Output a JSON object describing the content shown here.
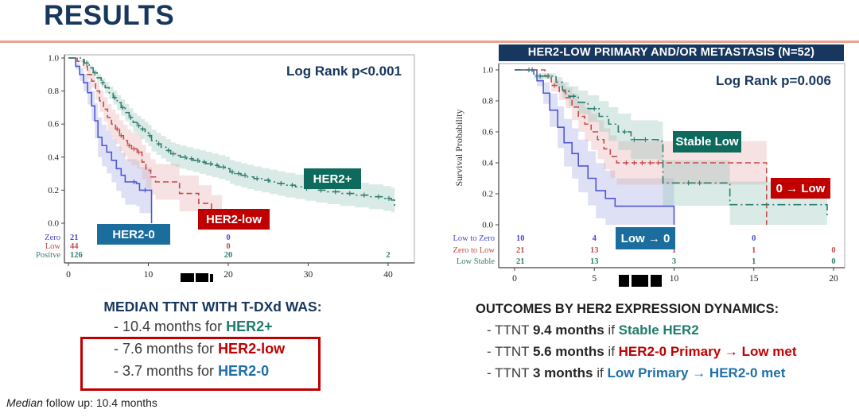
{
  "slide": {
    "title": "RESULTS"
  },
  "accents": {
    "navy": "#17375E",
    "rule": "#EBA48E",
    "teal": "#0E6A5C",
    "red": "#C00000",
    "blue": "#1B6D9E",
    "dark": "#1F1F1F"
  },
  "left_summary": {
    "heading": "MEDIAN TTNT WITH T-DXd WAS:",
    "lines": [
      {
        "prefix": "- 10.4 months for ",
        "highlight": "HER2+",
        "color": "#1E7C6B"
      },
      {
        "prefix": "- 7.6 months for ",
        "highlight": "HER2-low",
        "color": "#C00000"
      },
      {
        "prefix": "- 3.7 months for ",
        "highlight": "HER2-0",
        "color": "#1F6FA8"
      }
    ]
  },
  "right_summary": {
    "heading": "OUTCOMES BY HER2 EXPRESSION DYNAMICS:",
    "lines": [
      {
        "pre": "- TTNT ",
        "bold": "9.4 months",
        "mid": " if ",
        "highlight": "Stable HER2",
        "color": "#1E7C6B"
      },
      {
        "pre": "- TTNT ",
        "bold": "5.6 months",
        "mid": " if ",
        "highlight": "HER2-0 Primary → Low met",
        "color": "#C00000"
      },
      {
        "pre": "- TTNT ",
        "bold": "3 months",
        "mid": " if ",
        "highlight": "Low Primary → HER2-0 met",
        "color": "#1F6FA8"
      }
    ]
  },
  "footer": {
    "lead": "Median",
    "rest": " follow up: 10.4 months"
  },
  "chart_data": [
    {
      "type": "line",
      "subtype": "kaplan-meier-step",
      "annotation": "Log Rank p<0.001",
      "xlabel_redacted": true,
      "ylabel": "",
      "xlim": [
        0,
        41
      ],
      "ylim": [
        0,
        1
      ],
      "xticks": [
        0,
        10,
        20,
        30,
        40
      ],
      "yticks": [
        1.0,
        0.8,
        0.6,
        0.4,
        0.2,
        0.0
      ],
      "series": [
        {
          "label": "HER2-0",
          "risk_label": "Zero",
          "color": "#5156D4",
          "band_color": "#9AA5E0",
          "dash": "solid",
          "band": 0.14,
          "steps": [
            [
              0,
              1.0
            ],
            [
              0.9,
              0.95
            ],
            [
              1.4,
              0.9
            ],
            [
              1.9,
              0.85
            ],
            [
              2.4,
              0.79
            ],
            [
              2.9,
              0.71
            ],
            [
              3.3,
              0.62
            ],
            [
              3.7,
              0.52
            ],
            [
              4.2,
              0.47
            ],
            [
              4.8,
              0.43
            ],
            [
              5.4,
              0.38
            ],
            [
              6.0,
              0.33
            ],
            [
              6.6,
              0.29
            ],
            [
              7.1,
              0.25
            ],
            [
              8.5,
              0.24
            ],
            [
              8.9,
              0.2
            ],
            [
              10.3,
              0.2
            ],
            [
              10.4,
              0.0
            ]
          ],
          "censors": [
            8.2,
            9.6
          ]
        },
        {
          "label": "HER2-low",
          "risk_label": "Low",
          "color": "#C64A4A",
          "band_color": "#E4A8A8",
          "dash": "dash",
          "band": 0.11,
          "steps": [
            [
              0,
              1.0
            ],
            [
              1.1,
              0.98
            ],
            [
              1.9,
              0.95
            ],
            [
              2.4,
              0.9
            ],
            [
              2.9,
              0.86
            ],
            [
              3.4,
              0.8
            ],
            [
              3.9,
              0.74
            ],
            [
              4.4,
              0.69
            ],
            [
              4.9,
              0.64
            ],
            [
              5.4,
              0.6
            ],
            [
              5.9,
              0.57
            ],
            [
              6.4,
              0.53
            ],
            [
              6.9,
              0.5
            ],
            [
              7.4,
              0.47
            ],
            [
              7.9,
              0.45
            ],
            [
              8.6,
              0.43
            ],
            [
              9.2,
              0.37
            ],
            [
              9.7,
              0.32
            ],
            [
              10.3,
              0.28
            ],
            [
              10.9,
              0.25
            ],
            [
              13.5,
              0.25
            ],
            [
              13.9,
              0.18
            ],
            [
              15.9,
              0.18
            ],
            [
              16.3,
              0.12
            ],
            [
              17.6,
              0.12
            ],
            [
              17.9,
              0.06
            ],
            [
              19.1,
              0.06
            ],
            [
              19.2,
              0.0
            ]
          ],
          "censors": [
            6.1,
            6.6,
            7.6,
            8.2,
            8.8
          ]
        },
        {
          "label": "HER2+",
          "risk_label": "Positve",
          "color": "#2E7D6E",
          "band_color": "#8FC0B6",
          "dash": "dashdot",
          "band": 0.075,
          "steps": [
            [
              0,
              1.0
            ],
            [
              1.5,
              0.99
            ],
            [
              2.0,
              0.97
            ],
            [
              2.6,
              0.94
            ],
            [
              3.1,
              0.91
            ],
            [
              3.6,
              0.88
            ],
            [
              4.1,
              0.85
            ],
            [
              4.6,
              0.82
            ],
            [
              5.1,
              0.79
            ],
            [
              5.6,
              0.76
            ],
            [
              6.1,
              0.73
            ],
            [
              6.6,
              0.7
            ],
            [
              7.1,
              0.67
            ],
            [
              7.6,
              0.64
            ],
            [
              8.1,
              0.61
            ],
            [
              8.6,
              0.59
            ],
            [
              9.1,
              0.57
            ],
            [
              9.6,
              0.55
            ],
            [
              10.0,
              0.53
            ],
            [
              10.4,
              0.5
            ],
            [
              11.0,
              0.48
            ],
            [
              11.6,
              0.46
            ],
            [
              12.2,
              0.44
            ],
            [
              12.8,
              0.42
            ],
            [
              13.4,
              0.41
            ],
            [
              14.0,
              0.4
            ],
            [
              14.8,
              0.39
            ],
            [
              15.6,
              0.38
            ],
            [
              16.4,
              0.37
            ],
            [
              17.2,
              0.36
            ],
            [
              18.0,
              0.35
            ],
            [
              18.8,
              0.34
            ],
            [
              19.6,
              0.33
            ],
            [
              20.2,
              0.31
            ],
            [
              20.8,
              0.3
            ],
            [
              21.6,
              0.29
            ],
            [
              22.4,
              0.28
            ],
            [
              23.2,
              0.27
            ],
            [
              24.2,
              0.26
            ],
            [
              25.2,
              0.25
            ],
            [
              26.2,
              0.24
            ],
            [
              27.2,
              0.23
            ],
            [
              28.4,
              0.22
            ],
            [
              29.6,
              0.21
            ],
            [
              31.0,
              0.2
            ],
            [
              32.4,
              0.19
            ],
            [
              34.0,
              0.18
            ],
            [
              35.8,
              0.17
            ],
            [
              37.6,
              0.16
            ],
            [
              39.4,
              0.15
            ],
            [
              40.4,
              0.14
            ],
            [
              40.8,
              0.09
            ]
          ],
          "censors": [
            2.3,
            3.3,
            4.3,
            5.8,
            6.8,
            7.8,
            8.8,
            9.3,
            10.2,
            11.3,
            12.5,
            13.1,
            14.6,
            15.4,
            16.2,
            17.0,
            17.8,
            18.6,
            19.4,
            20.5,
            21.3,
            22.1,
            23.6,
            25.0,
            26.6,
            28.0,
            29.8,
            31.6,
            33.4,
            35.2,
            37.0,
            38.8,
            40.1
          ]
        }
      ],
      "at_risk": {
        "times": [
          0,
          10,
          20,
          30,
          40
        ],
        "rows": [
          {
            "label": "Zero",
            "color": "#4848CE",
            "counts": [
              [
                0,
                21
              ],
              [
                20,
                0
              ]
            ]
          },
          {
            "label": "Low",
            "color": "#C64A4A",
            "counts": [
              [
                0,
                44
              ],
              [
                20,
                0
              ]
            ]
          },
          {
            "label": "Positve",
            "color": "#2E7D6E",
            "counts": [
              [
                0,
                126
              ],
              [
                20,
                20
              ],
              [
                40,
                2
              ]
            ]
          }
        ]
      }
    },
    {
      "type": "line",
      "subtype": "kaplan-meier-step",
      "header": "HER2-LOW PRIMARY AND/OR METASTASIS (N=52)",
      "annotation": "Log Rank p=0.006",
      "xlabel_redacted": true,
      "ylabel": "Survival Probability",
      "xlim": [
        0,
        20
      ],
      "ylim": [
        0,
        1
      ],
      "xticks": [
        0,
        5,
        10,
        15,
        20
      ],
      "yticks": [
        1.0,
        0.8,
        0.6,
        0.4,
        0.2,
        0.0
      ],
      "series": [
        {
          "label": "Low → 0",
          "risk_label": "Low to Zero",
          "color": "#5156D4",
          "band_color": "#9AA5E0",
          "dash": "solid",
          "band": 0.18,
          "steps": [
            [
              0,
              1.0
            ],
            [
              1.4,
              0.93
            ],
            [
              1.8,
              0.85
            ],
            [
              2.2,
              0.74
            ],
            [
              2.7,
              0.63
            ],
            [
              3.1,
              0.53
            ],
            [
              3.6,
              0.46
            ],
            [
              4.0,
              0.38
            ],
            [
              4.6,
              0.3
            ],
            [
              5.1,
              0.22
            ],
            [
              5.7,
              0.17
            ],
            [
              6.3,
              0.12
            ],
            [
              9.9,
              0.12
            ],
            [
              10.0,
              0.0
            ]
          ],
          "censors": [
            1.1
          ]
        },
        {
          "label": "0 → Low",
          "risk_label": "Zero to Low",
          "color": "#C64A4A",
          "band_color": "#E4A8A8",
          "dash": "dash",
          "band": 0.15,
          "steps": [
            [
              0,
              1.0
            ],
            [
              1.9,
              0.96
            ],
            [
              2.3,
              0.9
            ],
            [
              2.8,
              0.86
            ],
            [
              3.2,
              0.82
            ],
            [
              3.6,
              0.76
            ],
            [
              4.0,
              0.7
            ],
            [
              4.4,
              0.65
            ],
            [
              4.8,
              0.6
            ],
            [
              5.2,
              0.55
            ],
            [
              5.6,
              0.49
            ],
            [
              6.0,
              0.44
            ],
            [
              6.4,
              0.4
            ],
            [
              15.7,
              0.4
            ],
            [
              15.8,
              0.0
            ]
          ],
          "censors": [
            2.5,
            7.0,
            7.5,
            8.0,
            8.5,
            9.0
          ]
        },
        {
          "label": "Stable Low",
          "risk_label": "Low Stable",
          "color": "#2E7D6E",
          "band_color": "#8FC0B6",
          "dash": "dashdot",
          "band": 0.15,
          "steps": [
            [
              0,
              1.0
            ],
            [
              1.2,
              0.96
            ],
            [
              2.6,
              0.92
            ],
            [
              3.0,
              0.87
            ],
            [
              3.4,
              0.83
            ],
            [
              4.0,
              0.79
            ],
            [
              4.6,
              0.75
            ],
            [
              5.3,
              0.7
            ],
            [
              5.9,
              0.65
            ],
            [
              6.5,
              0.6
            ],
            [
              7.3,
              0.55
            ],
            [
              9.0,
              0.54
            ],
            [
              9.3,
              0.27
            ],
            [
              13.3,
              0.27
            ],
            [
              13.5,
              0.13
            ],
            [
              19.4,
              0.13
            ],
            [
              19.6,
              0.05
            ]
          ],
          "censors": [
            0.9,
            1.6,
            2.1,
            3.7,
            5.0,
            6.9,
            7.5,
            8.2,
            10.9,
            11.6
          ]
        }
      ],
      "at_risk": {
        "times": [
          0,
          5,
          10,
          15,
          20
        ],
        "rows": [
          {
            "label": "Low to Zero",
            "color": "#4848CE",
            "counts": [
              [
                0,
                10
              ],
              [
                5,
                4
              ],
              [
                15,
                0
              ]
            ]
          },
          {
            "label": "Zero to Low",
            "color": "#C64A4A",
            "counts": [
              [
                0,
                21
              ],
              [
                5,
                13
              ],
              [
                10,
                1
              ],
              [
                15,
                1
              ],
              [
                20,
                0
              ]
            ]
          },
          {
            "label": "Low Stable",
            "color": "#2E7D6E",
            "counts": [
              [
                0,
                21
              ],
              [
                5,
                13
              ],
              [
                10,
                3
              ],
              [
                15,
                1
              ],
              [
                20,
                0
              ]
            ]
          }
        ]
      }
    }
  ]
}
